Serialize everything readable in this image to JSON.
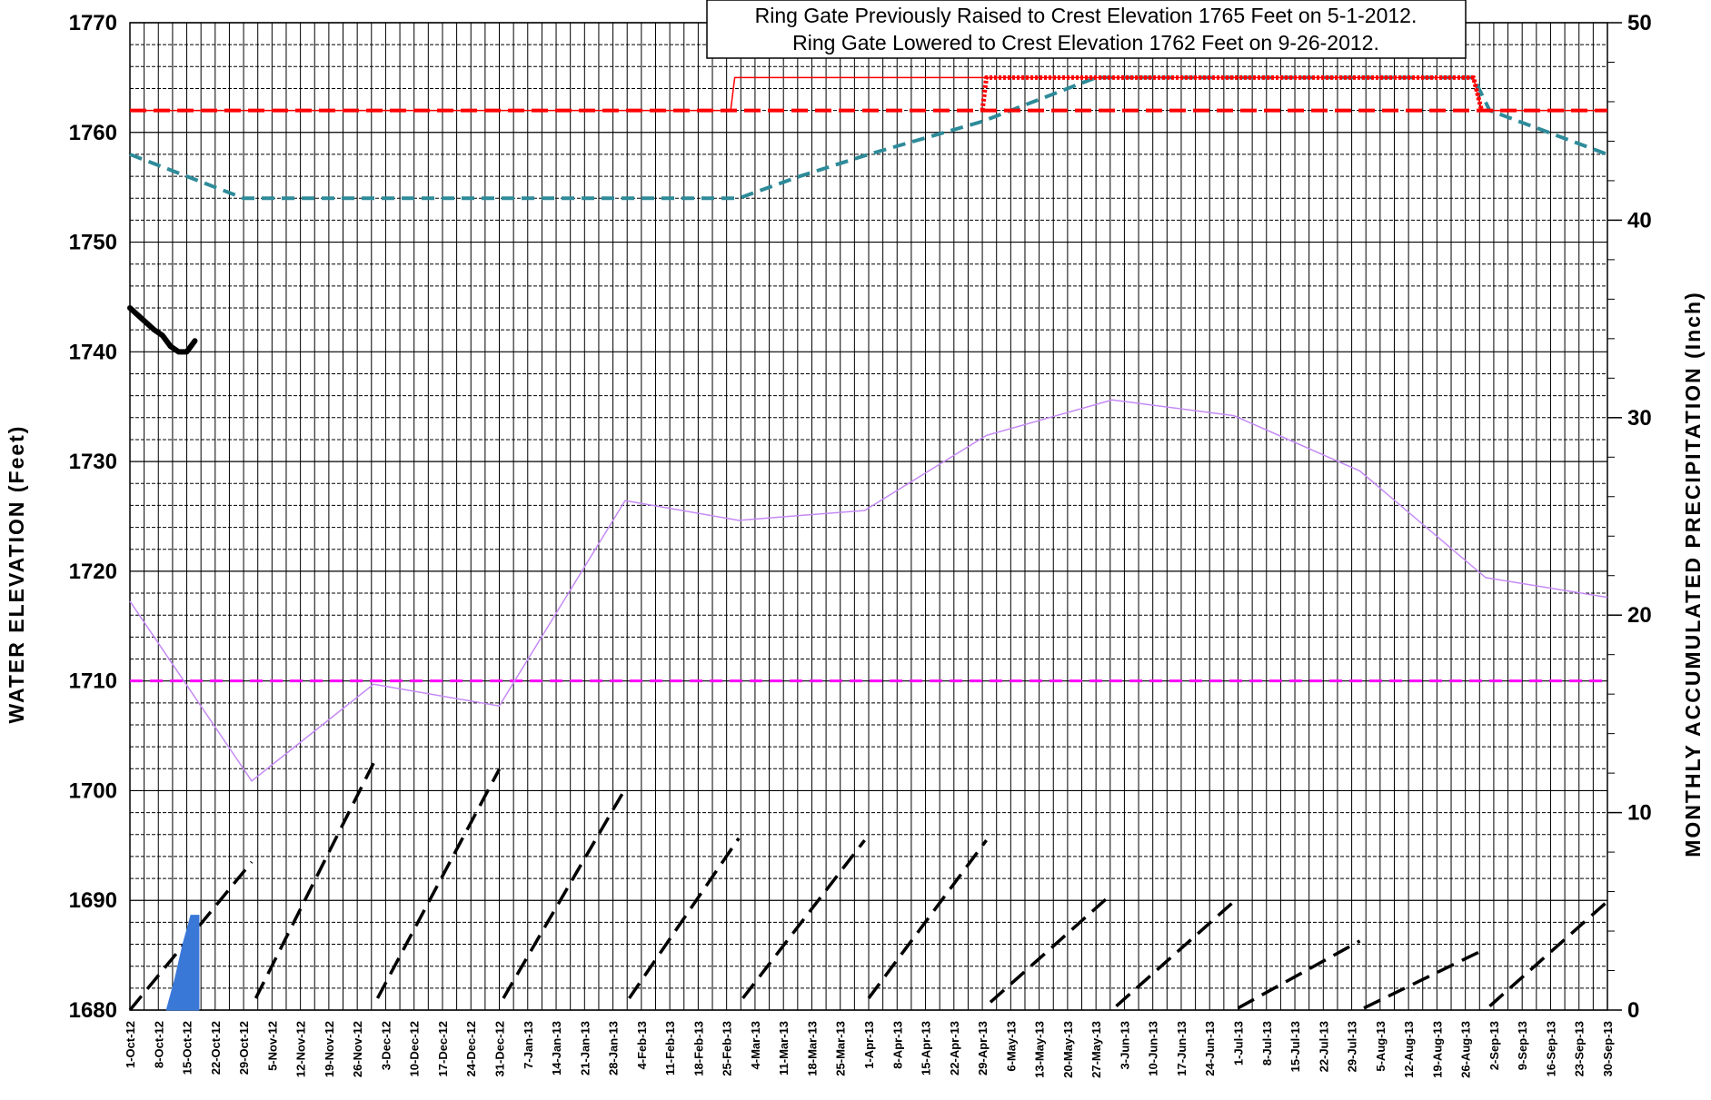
{
  "chart_data": {
    "type": "line",
    "annotation": [
      "Ring Gate Previously Raised to Crest Elevation 1765 Feet on 5-1-2012.",
      "Ring Gate Lowered to Crest Elevation 1762 Feet on 9-26-2012."
    ],
    "ylabel_left": "WATER  ELEVATION  (Feet)",
    "ylabel_right": "MONTHLY  ACCUMULATED  PRECIPITATION  (Inch)",
    "ylim_left": [
      1680,
      1770
    ],
    "ylim_right": [
      0,
      50
    ],
    "yticks_left": [
      "1680",
      "1690",
      "1700",
      "1710",
      "1720",
      "1730",
      "1740",
      "1750",
      "1760",
      "1770"
    ],
    "yticks_right": [
      "0",
      "10",
      "20",
      "30",
      "40",
      "50"
    ],
    "x_tick_labels": [
      "1-Oct-12",
      "8-Oct-12",
      "15-Oct-12",
      "22-Oct-12",
      "29-Oct-12",
      "5-Nov-12",
      "12-Nov-12",
      "19-Nov-12",
      "26-Nov-12",
      "3-Dec-12",
      "10-Dec-12",
      "17-Dec-12",
      "24-Dec-12",
      "31-Dec-12",
      "7-Jan-13",
      "14-Jan-13",
      "21-Jan-13",
      "28-Jan-13",
      "4-Feb-13",
      "11-Feb-13",
      "18-Feb-13",
      "25-Feb-13",
      "4-Mar-13",
      "11-Mar-13",
      "18-Mar-13",
      "25-Mar-13",
      "1-Apr-13",
      "8-Apr-13",
      "15-Apr-13",
      "22-Apr-13",
      "29-Apr-13",
      "6-May-13",
      "13-May-13",
      "20-May-13",
      "27-May-13",
      "3-Jun-13",
      "10-Jun-13",
      "17-Jun-13",
      "24-Jun-13",
      "1-Jul-13",
      "8-Jul-13",
      "15-Jul-13",
      "22-Jul-13",
      "29-Jul-13",
      "5-Aug-13",
      "12-Aug-13",
      "19-Aug-13",
      "26-Aug-13",
      "2-Sep-13",
      "9-Sep-13",
      "16-Sep-13",
      "23-Sep-13",
      "30-Sep-13"
    ],
    "grid": true,
    "series": [
      {
        "axis": "left",
        "style": "dashed",
        "color": "#2e8b99",
        "x": [
          "2012-10-01",
          "2012-10-15",
          "2012-10-29",
          "2012-11-05",
          "2012-12-31",
          "2013-02-28",
          "2013-03-15",
          "2013-04-01",
          "2013-04-29",
          "2013-05-27",
          "2013-06-15",
          "2013-08-28",
          "2013-09-01",
          "2013-09-30"
        ],
        "y": [
          1758,
          1756,
          1754,
          1754,
          1754,
          1754,
          1756,
          1758,
          1761,
          1765,
          1765,
          1765,
          1762,
          1758
        ]
      },
      {
        "axis": "left",
        "style": "solid",
        "color": "#ff0000",
        "width": 1.5,
        "x": [
          "2012-10-01",
          "2013-02-26",
          "2013-02-27",
          "2013-08-28",
          "2013-08-30",
          "2013-09-30"
        ],
        "y": [
          1762,
          1762,
          1765,
          1765,
          1762,
          1762
        ]
      },
      {
        "axis": "left",
        "style": "dashed",
        "color": "#ff0000",
        "x": [
          "2012-10-01",
          "2013-09-30"
        ],
        "y": [
          1762,
          1762
        ]
      },
      {
        "axis": "left",
        "style": "dotted-thick",
        "color": "#ff0000",
        "x": [
          "2013-04-29",
          "2013-04-30",
          "2013-05-06",
          "2013-06-01",
          "2013-07-01",
          "2013-08-01",
          "2013-08-28",
          "2013-08-30"
        ],
        "y": [
          1762,
          1765,
          1765,
          1765,
          1765,
          1765,
          1765,
          1762
        ]
      },
      {
        "axis": "left",
        "style": "dashed",
        "color": "#ff00ff",
        "width": 3,
        "x": [
          "2012-10-01",
          "2013-09-30"
        ],
        "y": [
          1710,
          1710
        ]
      },
      {
        "axis": "left",
        "style": "solid-thick",
        "color": "#000000",
        "x": [
          "2012-10-01",
          "2012-10-04",
          "2012-10-07",
          "2012-10-09",
          "2012-10-11",
          "2012-10-13",
          "2012-10-15",
          "2012-10-17"
        ],
        "y": [
          1744,
          1743,
          1742,
          1741.5,
          1740.5,
          1740,
          1740,
          1741
        ]
      },
      {
        "axis": "right",
        "style": "solid",
        "color": "#c58af5",
        "x": [
          "2012-10-01",
          "2012-10-31",
          "2012-11-30",
          "2012-12-31",
          "2013-01-31",
          "2013-02-28",
          "2013-03-31",
          "2013-04-30",
          "2013-05-31",
          "2013-06-30",
          "2013-07-31",
          "2013-08-31",
          "2013-09-30"
        ],
        "y": [
          20.7,
          11.6,
          16.5,
          15.4,
          25.8,
          24.8,
          25.3,
          29.1,
          30.9,
          30.1,
          27.3,
          21.9,
          20.9
        ]
      },
      {
        "axis": "right",
        "style": "dashed-thick",
        "color": "#000000",
        "segments": [
          {
            "x": [
              "2012-10-01",
              "2012-10-31"
            ],
            "y": [
              0,
              7.5
            ]
          },
          {
            "x": [
              "2012-11-01",
              "2012-11-30"
            ],
            "y": [
              0.6,
              12.5
            ]
          },
          {
            "x": [
              "2012-12-01",
              "2012-12-31"
            ],
            "y": [
              0.6,
              12.2
            ]
          },
          {
            "x": [
              "2013-01-01",
              "2013-01-31"
            ],
            "y": [
              0.6,
              11.2
            ]
          },
          {
            "x": [
              "2013-02-01",
              "2013-02-28"
            ],
            "y": [
              0.6,
              8.7
            ]
          },
          {
            "x": [
              "2013-03-01",
              "2013-03-31"
            ],
            "y": [
              0.6,
              8.6
            ]
          },
          {
            "x": [
              "2013-04-01",
              "2013-04-30"
            ],
            "y": [
              0.6,
              8.6
            ]
          },
          {
            "x": [
              "2013-05-01",
              "2013-05-31"
            ],
            "y": [
              0.4,
              5.9
            ]
          },
          {
            "x": [
              "2013-06-01",
              "2013-06-30"
            ],
            "y": [
              0.2,
              5.5
            ]
          },
          {
            "x": [
              "2013-07-01",
              "2013-07-31"
            ],
            "y": [
              0.1,
              3.5
            ]
          },
          {
            "x": [
              "2013-08-01",
              "2013-08-31"
            ],
            "y": [
              0.1,
              3.1
            ]
          },
          {
            "x": [
              "2013-09-01",
              "2013-09-30"
            ],
            "y": [
              0.2,
              5.5
            ]
          }
        ]
      },
      {
        "axis": "right",
        "style": "area",
        "color": "#3a78d8",
        "x": [
          "2012-10-10",
          "2012-10-12",
          "2012-10-14",
          "2012-10-16",
          "2012-10-18"
        ],
        "y": [
          0,
          1.5,
          3.3,
          4.8,
          4.8
        ]
      }
    ]
  }
}
